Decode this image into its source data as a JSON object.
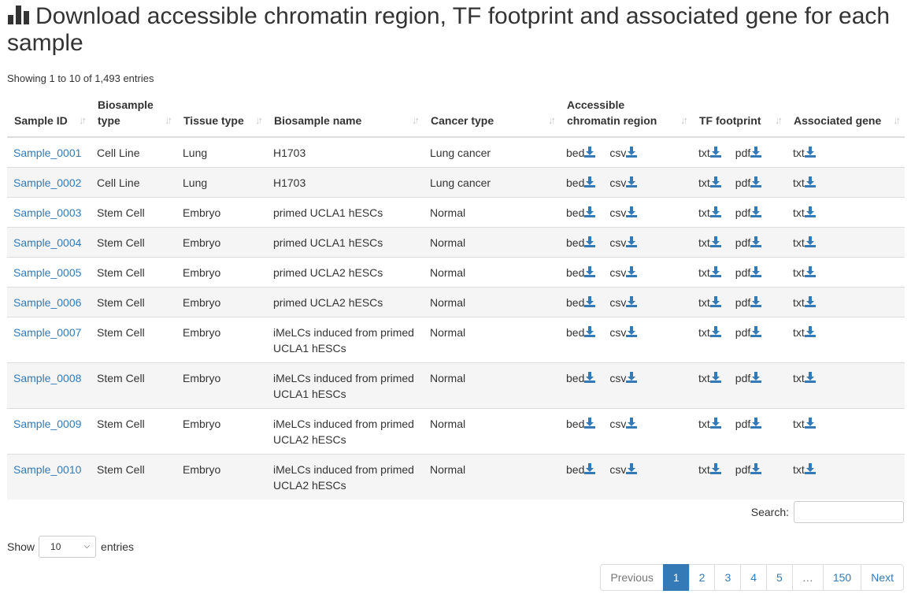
{
  "title": "Download accessible chromatin region, TF footprint and associated gene for each sample",
  "info": "Showing 1 to 10 of 1,493 entries",
  "columns": [
    "Sample ID",
    "Biosample type",
    "Tissue type",
    "Biosample name",
    "Cancer type",
    "Accessible chromatin region",
    "TF footprint",
    "Associated gene"
  ],
  "icons": {
    "chart": "bar-chart-icon",
    "sort": "sort-icon",
    "download": "download-icon",
    "chevron": "chevron-down-icon"
  },
  "colors": {
    "link": "#337ab7",
    "active_page": "#337ab7"
  },
  "links": {
    "bed": "bed",
    "csv": "csv",
    "txt": "txt",
    "pdf": "pdf"
  },
  "rows": [
    {
      "id": "Sample_0001",
      "biosample_type": "Cell Line",
      "tissue": "Lung",
      "name": "H1703",
      "cancer": "Lung cancer"
    },
    {
      "id": "Sample_0002",
      "biosample_type": "Cell Line",
      "tissue": "Lung",
      "name": "H1703",
      "cancer": "Lung cancer"
    },
    {
      "id": "Sample_0003",
      "biosample_type": "Stem Cell",
      "tissue": "Embryo",
      "name": "primed UCLA1 hESCs",
      "cancer": "Normal"
    },
    {
      "id": "Sample_0004",
      "biosample_type": "Stem Cell",
      "tissue": "Embryo",
      "name": "primed UCLA1 hESCs",
      "cancer": "Normal"
    },
    {
      "id": "Sample_0005",
      "biosample_type": "Stem Cell",
      "tissue": "Embryo",
      "name": "primed UCLA2 hESCs",
      "cancer": "Normal"
    },
    {
      "id": "Sample_0006",
      "biosample_type": "Stem Cell",
      "tissue": "Embryo",
      "name": "primed UCLA2 hESCs",
      "cancer": "Normal"
    },
    {
      "id": "Sample_0007",
      "biosample_type": "Stem Cell",
      "tissue": "Embryo",
      "name": "iMeLCs induced from primed UCLA1 hESCs",
      "cancer": "Normal"
    },
    {
      "id": "Sample_0008",
      "biosample_type": "Stem Cell",
      "tissue": "Embryo",
      "name": "iMeLCs induced from primed UCLA1 hESCs",
      "cancer": "Normal"
    },
    {
      "id": "Sample_0009",
      "biosample_type": "Stem Cell",
      "tissue": "Embryo",
      "name": "iMeLCs induced from primed UCLA2 hESCs",
      "cancer": "Normal"
    },
    {
      "id": "Sample_0010",
      "biosample_type": "Stem Cell",
      "tissue": "Embryo",
      "name": "iMeLCs induced from primed UCLA2 hESCs",
      "cancer": "Normal"
    }
  ],
  "search": {
    "label": "Search:",
    "value": ""
  },
  "length": {
    "prefix": "Show",
    "value": "10",
    "suffix": "entries"
  },
  "pagination": {
    "previous": "Previous",
    "pages": [
      "1",
      "2",
      "3",
      "4",
      "5"
    ],
    "ellipsis": "…",
    "last_page": "150",
    "next": "Next",
    "active": "1"
  }
}
